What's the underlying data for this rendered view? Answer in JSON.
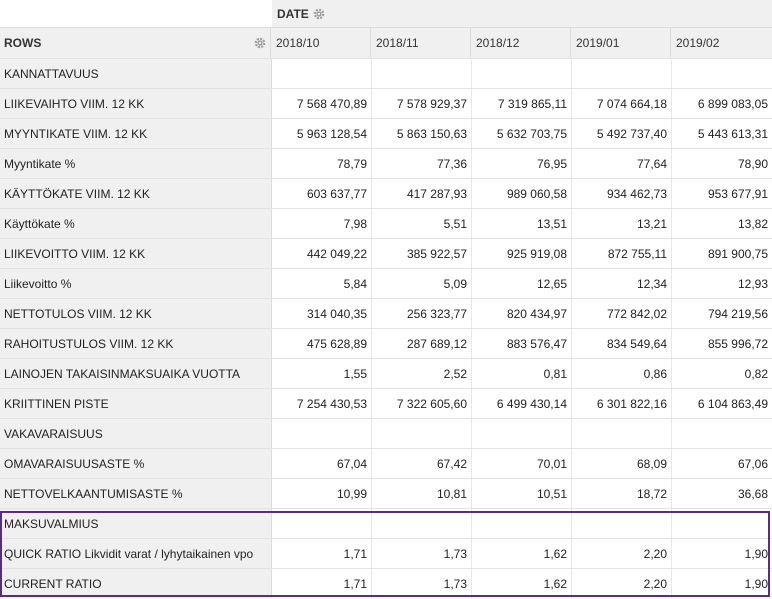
{
  "column_axis": {
    "label": "DATE",
    "settings_icon": "gear-icon"
  },
  "row_axis": {
    "label": "ROWS",
    "settings_icon": "gear-icon"
  },
  "columns": [
    "2018/10",
    "2018/11",
    "2018/12",
    "2019/01",
    "2019/02"
  ],
  "rows": [
    {
      "label": "KANNATTAVUUS",
      "values": [
        "",
        "",
        "",
        "",
        ""
      ]
    },
    {
      "label": "LIIKEVAIHTO VIIM. 12 KK",
      "values": [
        "7 568 470,89",
        "7 578 929,37",
        "7 319 865,11",
        "7 074 664,18",
        "6 899 083,05"
      ]
    },
    {
      "label": "MYYNTIKATE VIIM. 12 KK",
      "values": [
        "5 963 128,54",
        "5 863 150,63",
        "5 632 703,75",
        "5 492 737,40",
        "5 443 613,31"
      ]
    },
    {
      "label": "Myyntikate %",
      "values": [
        "78,79",
        "77,36",
        "76,95",
        "77,64",
        "78,90"
      ]
    },
    {
      "label": "KÄYTTÖKATE VIIM. 12 KK",
      "values": [
        "603 637,77",
        "417 287,93",
        "989 060,58",
        "934 462,73",
        "953 677,91"
      ]
    },
    {
      "label": "Käyttökate %",
      "values": [
        "7,98",
        "5,51",
        "13,51",
        "13,21",
        "13,82"
      ]
    },
    {
      "label": "LIIKEVOITTO VIIM. 12 KK",
      "values": [
        "442 049,22",
        "385 922,57",
        "925 919,08",
        "872 755,11",
        "891 900,75"
      ]
    },
    {
      "label": "Liikevoitto %",
      "values": [
        "5,84",
        "5,09",
        "12,65",
        "12,34",
        "12,93"
      ]
    },
    {
      "label": "NETTOTULOS VIIM. 12 KK",
      "values": [
        "314 040,35",
        "256 323,77",
        "820 434,97",
        "772 842,02",
        "794 219,56"
      ]
    },
    {
      "label": "RAHOITUSTULOS VIIM. 12 KK",
      "values": [
        "475 628,89",
        "287 689,12",
        "883 576,47",
        "834 549,64",
        "855 996,72"
      ]
    },
    {
      "label": "LAINOJEN TAKAISINMAKSUAIKA VUOTTA",
      "values": [
        "1,55",
        "2,52",
        "0,81",
        "0,86",
        "0,82"
      ]
    },
    {
      "label": "KRIITTINEN PISTE",
      "values": [
        "7 254 430,53",
        "7 322 605,60",
        "6 499 430,14",
        "6 301 822,16",
        "6 104 863,49"
      ]
    },
    {
      "label": "VAKAVARAISUUS",
      "values": [
        "",
        "",
        "",
        "",
        ""
      ]
    },
    {
      "label": "OMAVARAISUUSASTE %",
      "values": [
        "67,04",
        "67,42",
        "70,01",
        "68,09",
        "67,06"
      ]
    },
    {
      "label": "NETTOVELKAANTUMISASTE %",
      "values": [
        "10,99",
        "10,81",
        "10,51",
        "18,72",
        "36,68"
      ]
    },
    {
      "label": "MAKSUVALMIUS",
      "values": [
        "",
        "",
        "",
        "",
        ""
      ]
    },
    {
      "label": "QUICK RATIO Likvidit varat / lyhytaikainen vpo",
      "values": [
        "1,71",
        "1,73",
        "1,62",
        "2,20",
        "1,90"
      ]
    },
    {
      "label": "CURRENT RATIO",
      "values": [
        "1,71",
        "1,73",
        "1,62",
        "2,20",
        "1,90"
      ]
    }
  ],
  "highlight": {
    "color": "#5b2c83"
  }
}
